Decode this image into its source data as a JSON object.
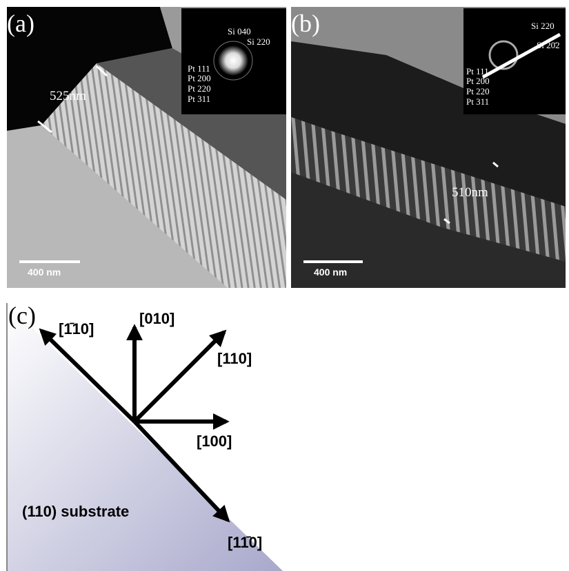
{
  "panel_a": {
    "label": "(a)",
    "thickness": "525nm",
    "scale_bar": "400 nm",
    "inset": {
      "spots": [
        "Si 040",
        "Si 220"
      ],
      "rings": [
        "Pt 111",
        "Pt 200",
        "Pt 220",
        "Pt 311"
      ]
    }
  },
  "panel_b": {
    "label": "(b)",
    "thickness": "510nm",
    "scale_bar": "400 nm",
    "inset": {
      "spots": [
        "Si 220",
        "Si 20̄2"
      ],
      "rings": [
        "Pt 111",
        "Pt 200",
        "Pt 220",
        "Pt 311"
      ]
    }
  },
  "panel_c": {
    "label": "(c)",
    "directions": [
      "[1̄10]",
      "[010]",
      "[110]",
      "[100]",
      "[11̄0]"
    ],
    "substrate": "(110) substrate"
  }
}
